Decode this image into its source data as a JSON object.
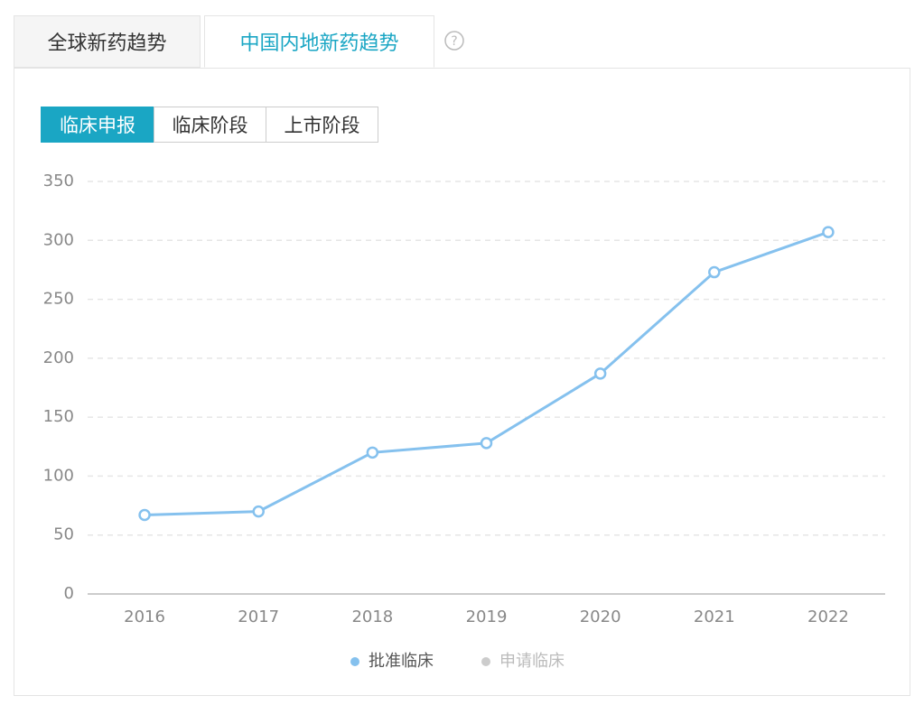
{
  "tabs": [
    "全球新药趋势",
    "中国内地新药趋势"
  ],
  "buttons": [
    "临床申报",
    "临床阶段",
    "上市阶段"
  ],
  "chart_data": {
    "type": "line",
    "categories": [
      "2016",
      "2017",
      "2018",
      "2019",
      "2020",
      "2021",
      "2022"
    ],
    "series": [
      {
        "name": "批准临床",
        "color": "#85c1ee",
        "values": [
          67,
          70,
          120,
          128,
          187,
          273,
          307
        ]
      },
      {
        "name": "申请临床",
        "color": "#cccccc",
        "values": [
          null,
          null,
          null,
          null,
          null,
          null,
          null
        ]
      }
    ],
    "ylim": [
      0,
      350
    ],
    "yticks": [
      0,
      50,
      100,
      150,
      200,
      250,
      300,
      350
    ],
    "grid": true
  }
}
